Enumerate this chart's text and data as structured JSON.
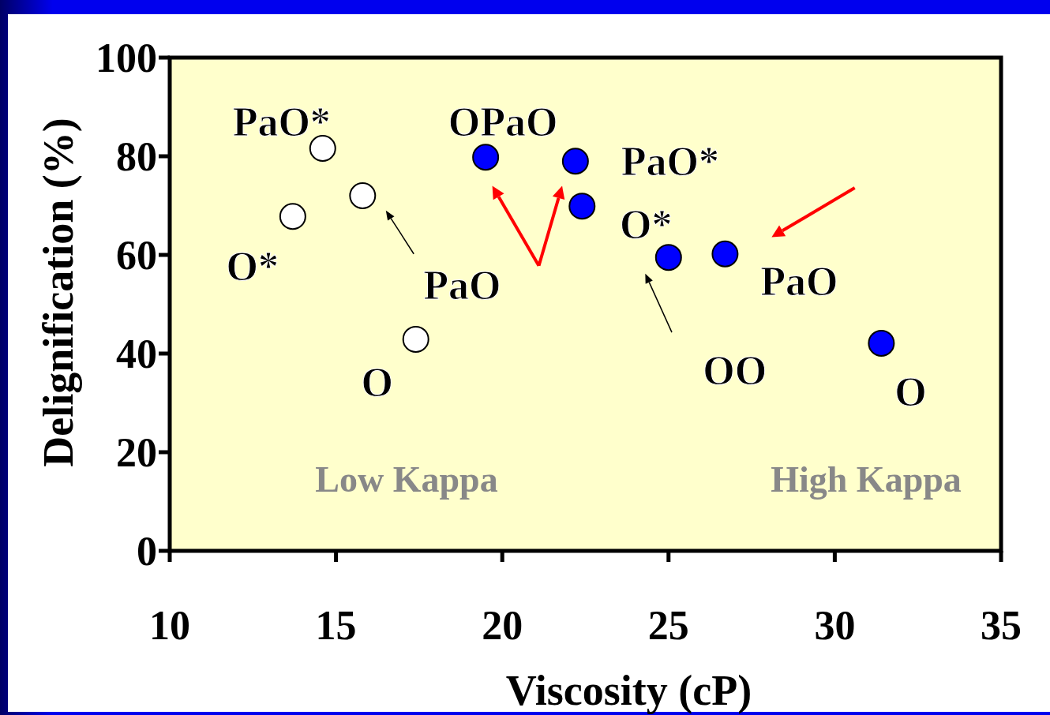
{
  "chart_data": {
    "type": "scatter",
    "xlabel": "Viscosity (cP)",
    "ylabel": "Delignification (%)",
    "xlim": [
      10,
      35
    ],
    "xticks": [
      10,
      15,
      20,
      25,
      30,
      35
    ],
    "ylim": [
      0,
      100
    ],
    "yticks": [
      0,
      20,
      40,
      60,
      80,
      100
    ],
    "marker": "circle",
    "grid": false,
    "series": [
      {
        "color": "#ffffff",
        "x": [
          14.6,
          13.7,
          15.8,
          17.4
        ],
        "values": [
          81.6,
          67.8,
          72,
          42.9
        ]
      },
      {
        "color": "#0000ff",
        "x": [
          19.5,
          22.2,
          22.4,
          25,
          26.7,
          31.4
        ],
        "values": [
          79.8,
          79,
          69.9,
          59.5,
          60.2,
          42.1
        ]
      }
    ],
    "annotations": [
      {
        "text": "PaO*",
        "x": 14.6,
        "y": 81.6
      },
      {
        "text": "O*",
        "x": 13.7,
        "y": 67.8
      },
      {
        "text": "PaO",
        "x": 15.8,
        "y": 72
      },
      {
        "text": "O",
        "x": 17.4,
        "y": 42.9
      },
      {
        "text": "OPaO",
        "x": 19.5,
        "y": 79.8
      },
      {
        "text": "PaO*",
        "x": 22.2,
        "y": 79
      },
      {
        "text": "O*",
        "x": 22.4,
        "y": 69.9
      },
      {
        "text": "PaO",
        "x": 26.7,
        "y": 60.2
      },
      {
        "text": "OO",
        "x": 25,
        "y": 59.5
      },
      {
        "text": "O",
        "x": 31.4,
        "y": 42.1
      },
      "Low Kappa",
      "High Kappa"
    ]
  }
}
